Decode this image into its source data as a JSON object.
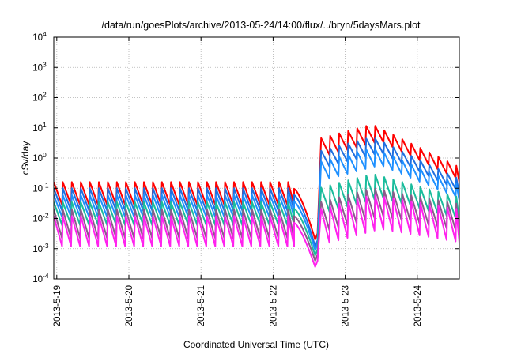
{
  "chart_data": {
    "type": "line",
    "title": "/data/run/goesPlots/archive/2013-05-24/14:00/flux/../bryn/5daysMars.plot",
    "xlabel": "Coordinated Universal Time (UTC)",
    "ylabel": "cSv/day",
    "yscale": "log",
    "ylim": [
      0.0001,
      10000
    ],
    "xlim": [
      "2013-05-18 23:00",
      "2013-05-24 14:00"
    ],
    "grid": true,
    "legend": "none",
    "y_ticks": [
      {
        "base": "10",
        "exp": "-4"
      },
      {
        "base": "10",
        "exp": "-3"
      },
      {
        "base": "10",
        "exp": "-2"
      },
      {
        "base": "10",
        "exp": "-1"
      },
      {
        "base": "10",
        "exp": "0"
      },
      {
        "base": "10",
        "exp": "1"
      },
      {
        "base": "10",
        "exp": "2"
      },
      {
        "base": "10",
        "exp": "3"
      },
      {
        "base": "10",
        "exp": "4"
      }
    ],
    "x_ticks": [
      "2013-5-19",
      "2013-5-20",
      "2013-5-21",
      "2013-5-22",
      "2013-5-23",
      "2013-5-24"
    ],
    "sawtooth_period_hours": 3,
    "series": [
      {
        "color": "#ff0000",
        "quiet_peak": 0.16,
        "quiet_trough": 0.028,
        "dip_min": 0.002,
        "event_peak": 13,
        "event_end_peak": 0.5,
        "event_end_trough": 0.14
      },
      {
        "color": "#1f6fe0",
        "quiet_peak": 0.1,
        "quiet_trough": 0.018,
        "dip_min": 0.0012,
        "event_peak": 5,
        "event_end_peak": 0.2,
        "event_end_trough": 0.06
      },
      {
        "color": "#1e90ff",
        "quiet_peak": 0.06,
        "quiet_trough": 0.011,
        "dip_min": 0.0009,
        "event_peak": 2.2,
        "event_end_peak": 0.13,
        "event_end_trough": 0.035
      },
      {
        "color": "#1abc9c",
        "quiet_peak": 0.035,
        "quiet_trough": 0.006,
        "dip_min": 0.0006,
        "event_peak": 0.3,
        "event_end_peak": 0.05,
        "event_end_trough": 0.008
      },
      {
        "color": "#8b5a8b",
        "quiet_peak": 0.02,
        "quiet_trough": 0.0022,
        "dip_min": 0.0004,
        "event_peak": 0.1,
        "event_end_peak": 0.03,
        "event_end_trough": 0.0035
      },
      {
        "color": "#ff22ee",
        "quiet_peak": 0.012,
        "quiet_trough": 0.0012,
        "dip_min": 0.00025,
        "event_peak": 0.06,
        "event_end_peak": 0.02,
        "event_end_trough": 0.0015
      }
    ]
  }
}
